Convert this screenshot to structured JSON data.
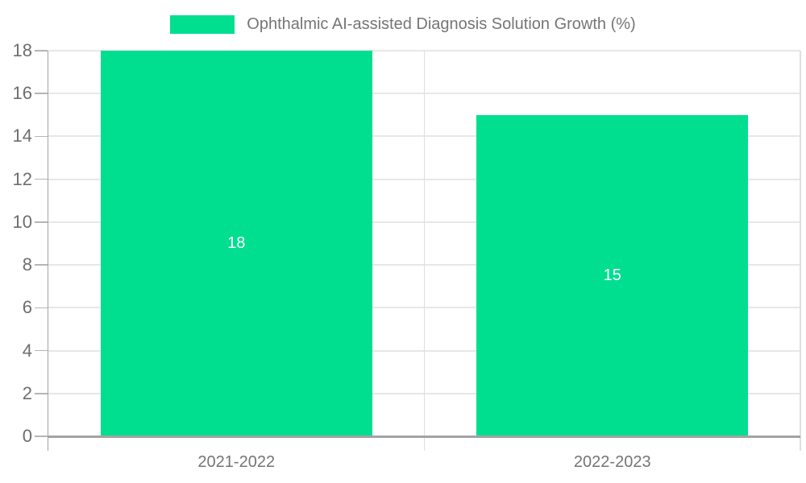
{
  "legend": {
    "label": "Ophthalmic AI-assisted Diagnosis Solution Growth (%)"
  },
  "colors": {
    "bar": "#00DE90",
    "grid": "#e7e7e7",
    "boundary": "#e0e0e0",
    "axis": "#a3a3a3",
    "tick": "#b5b5b5",
    "axis_text": "#6e6e6e",
    "bar_label_text": "#ffffff"
  },
  "chart_data": {
    "type": "bar",
    "categories": [
      "2021-2022",
      "2022-2023"
    ],
    "values": [
      18,
      15
    ],
    "series": [
      {
        "name": "Ophthalmic AI-assisted Diagnosis Solution Growth (%)",
        "values": [
          18,
          15
        ]
      }
    ],
    "title": "",
    "xlabel": "",
    "ylabel": "",
    "ylim": [
      0,
      18
    ],
    "ytick_step": 2,
    "grid": true,
    "legend_position": "top",
    "bar_value_labels": [
      "18",
      "15"
    ]
  }
}
